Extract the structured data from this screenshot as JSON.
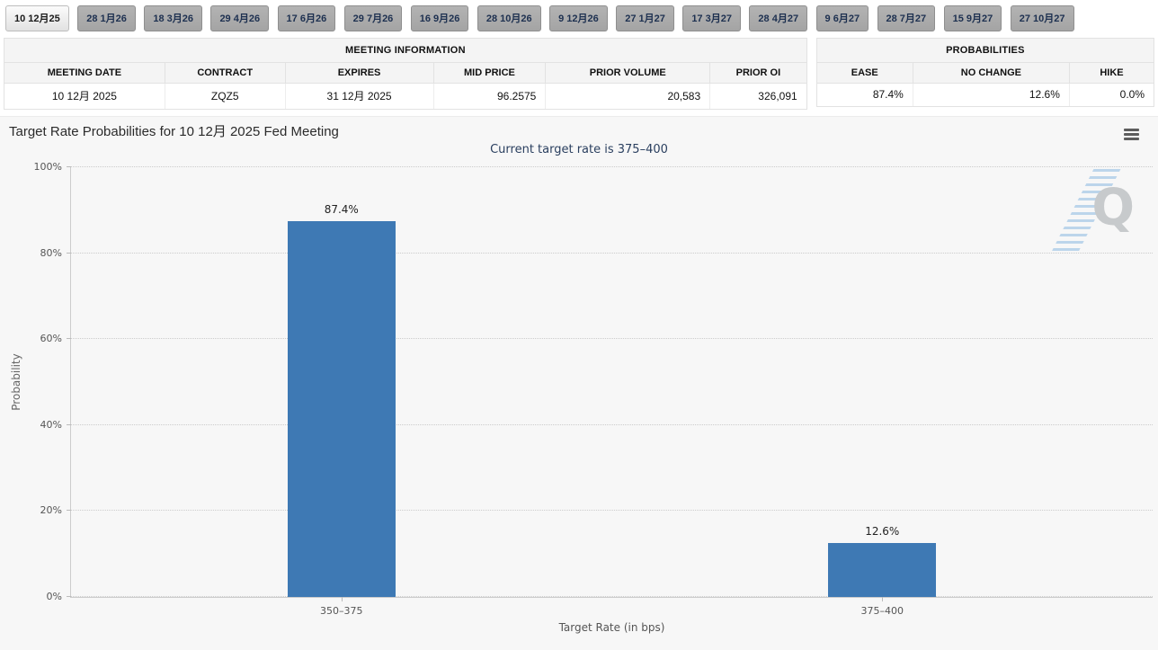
{
  "tabs": {
    "items": [
      {
        "label": "10 12月25",
        "selected": true
      },
      {
        "label": "28 1月26",
        "selected": false
      },
      {
        "label": "18 3月26",
        "selected": false
      },
      {
        "label": "29 4月26",
        "selected": false
      },
      {
        "label": "17 6月26",
        "selected": false
      },
      {
        "label": "29 7月26",
        "selected": false
      },
      {
        "label": "16 9月26",
        "selected": false
      },
      {
        "label": "28 10月26",
        "selected": false
      },
      {
        "label": "9 12月26",
        "selected": false
      },
      {
        "label": "27 1月27",
        "selected": false
      },
      {
        "label": "17 3月27",
        "selected": false
      },
      {
        "label": "28 4月27",
        "selected": false
      },
      {
        "label": "9 6月27",
        "selected": false
      },
      {
        "label": "28 7月27",
        "selected": false
      },
      {
        "label": "15 9月27",
        "selected": false
      },
      {
        "label": "27 10月27",
        "selected": false
      }
    ]
  },
  "meeting_table": {
    "title": "MEETING INFORMATION",
    "headers": [
      "MEETING DATE",
      "CONTRACT",
      "EXPIRES",
      "MID PRICE",
      "PRIOR VOLUME",
      "PRIOR OI"
    ],
    "values": [
      "10 12月 2025",
      "ZQZ5",
      "31 12月 2025",
      "96.2575",
      "20,583",
      "326,091"
    ]
  },
  "probabilities_table": {
    "title": "PROBABILITIES",
    "headers": [
      "EASE",
      "NO CHANGE",
      "HIKE"
    ],
    "values": [
      "87.4%",
      "12.6%",
      "0.0%"
    ]
  },
  "chart": {
    "title": "Target Rate Probabilities for 10 12月 2025 Fed Meeting",
    "subtitle": "Current target rate is 375–400",
    "watermark_letter": "Q",
    "menu_icon": "hamburger-icon"
  },
  "chart_data": {
    "type": "bar",
    "title": "Target Rate Probabilities for 10 12月 2025 Fed Meeting",
    "subtitle": "Current target rate is 375–400",
    "categories": [
      "350–375",
      "375–400"
    ],
    "values": [
      87.4,
      12.6
    ],
    "value_labels": [
      "87.4%",
      "12.6%"
    ],
    "xlabel": "Target Rate (in bps)",
    "ylabel": "Probability",
    "ylim": [
      0,
      100
    ],
    "ytick_labels": [
      "0%",
      "20%",
      "40%",
      "60%",
      "80%",
      "100%"
    ],
    "grid": "horizontal-dotted",
    "legend": "none",
    "bar_color": "#3e79b4"
  },
  "colors": {
    "bar": "#3e79b4",
    "subtitle_text": "#2a3f5f",
    "chart_background": "#f7f7f7",
    "tab_selected_text": "#1a1a1a",
    "tab_unselected_bg": "#ababab"
  }
}
